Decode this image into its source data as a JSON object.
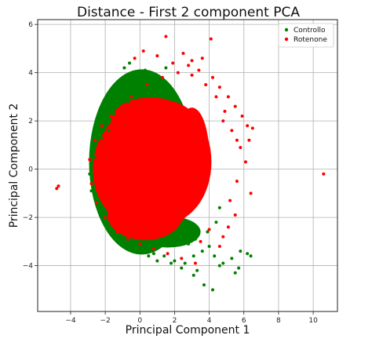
{
  "chart_data": {
    "type": "scatter",
    "title": "Distance - First 2 component PCA",
    "xlabel": "Principal Component 1",
    "ylabel": "Principal Component 2",
    "xlim": [
      -5.9,
      11.4
    ],
    "ylim": [
      -5.9,
      6.2
    ],
    "x_ticks": [
      -4,
      -2,
      0,
      2,
      4,
      6,
      8,
      10
    ],
    "y_ticks": [
      -4,
      -2,
      0,
      2,
      4,
      6
    ],
    "grid": true,
    "legend_position": "top-right",
    "series": [
      {
        "name": "Controllo",
        "color": "#008000",
        "points": [
          [
            -1.5,
            2.3
          ],
          [
            -1.2,
            2.6
          ],
          [
            -0.8,
            3.0
          ],
          [
            -0.5,
            3.3
          ],
          [
            -0.3,
            3.6
          ],
          [
            0.0,
            3.9
          ],
          [
            0.3,
            4.1
          ],
          [
            0.6,
            3.8
          ],
          [
            -0.9,
            4.2
          ],
          [
            -0.6,
            4.4
          ],
          [
            -1.8,
            1.6
          ],
          [
            -2.2,
            1.3
          ],
          [
            -2.6,
            0.5
          ],
          [
            -2.9,
            -0.2
          ],
          [
            -2.8,
            -0.9
          ],
          [
            -2.4,
            -1.6
          ],
          [
            -2.0,
            -2.2
          ],
          [
            -1.5,
            -2.7
          ],
          [
            -1.0,
            -3.0
          ],
          [
            -0.4,
            -3.2
          ],
          [
            0.2,
            -3.4
          ],
          [
            0.8,
            -3.5
          ],
          [
            1.4,
            -3.6
          ],
          [
            2.0,
            -3.8
          ],
          [
            2.6,
            -3.9
          ],
          [
            3.1,
            -3.6
          ],
          [
            3.6,
            -3.4
          ],
          [
            4.0,
            -3.2
          ],
          [
            4.3,
            -3.6
          ],
          [
            4.8,
            -3.9
          ],
          [
            5.3,
            -3.7
          ],
          [
            5.8,
            -3.4
          ],
          [
            6.2,
            -3.5
          ],
          [
            6.4,
            -3.6
          ],
          [
            5.5,
            -4.3
          ],
          [
            5.7,
            -4.1
          ],
          [
            4.6,
            -4.0
          ],
          [
            3.3,
            -4.2
          ],
          [
            3.1,
            -4.4
          ],
          [
            2.4,
            -4.1
          ],
          [
            1.8,
            -3.9
          ],
          [
            4.2,
            -5.0
          ],
          [
            3.7,
            -4.8
          ],
          [
            1.0,
            -3.8
          ],
          [
            0.5,
            -3.6
          ],
          [
            -0.5,
            -3.0
          ],
          [
            3.9,
            -2.6
          ],
          [
            4.4,
            -2.2
          ],
          [
            4.6,
            -1.6
          ],
          [
            3.2,
            -2.9
          ],
          [
            2.8,
            -3.1
          ],
          [
            -1.0,
            3.4
          ],
          [
            -0.2,
            3.1
          ],
          [
            0.4,
            3.5
          ],
          [
            0.9,
            3.4
          ],
          [
            -1.4,
            3.0
          ],
          [
            -1.9,
            2.1
          ],
          [
            -0.7,
            2.8
          ],
          [
            1.2,
            3.6
          ],
          [
            1.5,
            4.2
          ]
        ]
      },
      {
        "name": "Rotenone",
        "color": "#ff0000",
        "points": [
          [
            -4.7,
            -0.7
          ],
          [
            -4.8,
            -0.8
          ],
          [
            10.6,
            -0.2
          ],
          [
            1.5,
            5.5
          ],
          [
            4.1,
            5.4
          ],
          [
            2.5,
            4.8
          ],
          [
            3.0,
            4.5
          ],
          [
            3.6,
            4.6
          ],
          [
            1.0,
            4.7
          ],
          [
            0.2,
            4.9
          ],
          [
            -0.3,
            4.6
          ],
          [
            4.2,
            3.8
          ],
          [
            4.6,
            3.4
          ],
          [
            5.1,
            3.0
          ],
          [
            5.5,
            2.6
          ],
          [
            5.9,
            2.2
          ],
          [
            6.2,
            1.8
          ],
          [
            6.5,
            1.7
          ],
          [
            6.3,
            1.2
          ],
          [
            5.8,
            0.9
          ],
          [
            6.1,
            0.3
          ],
          [
            5.6,
            -0.5
          ],
          [
            5.2,
            -1.3
          ],
          [
            5.5,
            -1.9
          ],
          [
            5.1,
            -2.4
          ],
          [
            4.8,
            -2.8
          ],
          [
            4.6,
            -3.2
          ],
          [
            3.2,
            -3.9
          ],
          [
            2.4,
            -3.7
          ],
          [
            1.6,
            -3.5
          ],
          [
            0.8,
            -3.3
          ],
          [
            0.0,
            -3.1
          ],
          [
            -0.7,
            -2.9
          ],
          [
            -1.3,
            -2.6
          ],
          [
            -2.0,
            -2.0
          ],
          [
            -2.5,
            -1.4
          ],
          [
            -2.8,
            -0.6
          ],
          [
            -2.9,
            0.4
          ],
          [
            -2.6,
            1.2
          ],
          [
            -2.2,
            1.8
          ],
          [
            -1.7,
            2.2
          ],
          [
            -1.1,
            2.6
          ],
          [
            -0.5,
            3.0
          ],
          [
            0.4,
            3.5
          ],
          [
            1.3,
            3.8
          ],
          [
            2.2,
            4.0
          ],
          [
            3.0,
            3.9
          ],
          [
            3.8,
            3.5
          ],
          [
            4.4,
            3.0
          ],
          [
            4.9,
            2.4
          ],
          [
            5.3,
            1.6
          ],
          [
            2.8,
            4.3
          ],
          [
            1.9,
            4.4
          ],
          [
            3.4,
            4.1
          ],
          [
            4.8,
            2.0
          ],
          [
            5.6,
            1.2
          ],
          [
            4.0,
            -2.5
          ],
          [
            3.5,
            -3.0
          ],
          [
            6.4,
            -1.0
          ]
        ]
      }
    ]
  }
}
